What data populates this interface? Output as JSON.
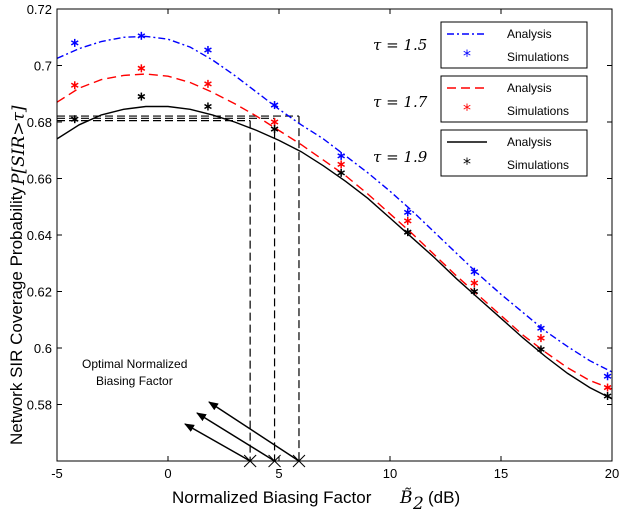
{
  "chart_data": {
    "type": "line",
    "xlabel": "Normalized Biasing Factor",
    "xlabel_symbol": "B̃",
    "xlabel_subscript": "2",
    "xlabel_unit": "(dB)",
    "ylabel": "Network SIR Coverage Probability",
    "ylabel_symbol": "P[SIR>τ]",
    "xlim": [
      -5,
      20
    ],
    "ylim": [
      0.56,
      0.72
    ],
    "xticks": [
      -5,
      0,
      5,
      10,
      15,
      20
    ],
    "yticks": [
      0.58,
      0.6,
      0.62,
      0.64,
      0.66,
      0.68,
      0.7,
      0.72
    ],
    "ytick_labels": [
      "0.58",
      "0.6",
      "0.62",
      "0.64",
      "0.66",
      "0.68",
      "0.7",
      "0.72"
    ],
    "annotation": {
      "line1": "Optimal Normalized",
      "line2": "Biasing Factor",
      "optimal_x": [
        3.7,
        4.8,
        5.9
      ]
    },
    "series": [
      {
        "tau_label": "τ = 1.5",
        "color": "#0000ff",
        "analysis_label": "Analysis",
        "sim_label": "Simulations",
        "analysis": {
          "x": [
            -5,
            -4,
            -3,
            -2,
            -1,
            0,
            1,
            2,
            3,
            4,
            5,
            6,
            7,
            8,
            9,
            10,
            11,
            12,
            13,
            14,
            15,
            16,
            17,
            18,
            19,
            20
          ],
          "y": [
            0.7025,
            0.706,
            0.7085,
            0.71,
            0.7103,
            0.7093,
            0.7065,
            0.702,
            0.6965,
            0.6905,
            0.6845,
            0.679,
            0.674,
            0.668,
            0.662,
            0.6555,
            0.6485,
            0.641,
            0.6335,
            0.626,
            0.619,
            0.6125,
            0.606,
            0.6005,
            0.5955,
            0.5915
          ]
        },
        "simulations": {
          "x": [
            -4.2,
            -1.2,
            1.8,
            4.8,
            7.8,
            10.8,
            13.8,
            16.8,
            19.8
          ],
          "y": [
            0.708,
            0.7105,
            0.7055,
            0.686,
            0.668,
            0.648,
            0.627,
            0.607,
            0.59
          ]
        }
      },
      {
        "tau_label": "τ = 1.7",
        "color": "#ff0000",
        "analysis_label": "Analysis",
        "sim_label": "Simulations",
        "analysis": {
          "x": [
            -5,
            -4,
            -3,
            -2,
            -1,
            0,
            1,
            2,
            3,
            4,
            5,
            6,
            7,
            8,
            9,
            10,
            11,
            12,
            13,
            14,
            15,
            16,
            17,
            18,
            19,
            20
          ],
          "y": [
            0.687,
            0.692,
            0.695,
            0.6965,
            0.697,
            0.6962,
            0.694,
            0.6905,
            0.6865,
            0.682,
            0.677,
            0.672,
            0.6665,
            0.661,
            0.6545,
            0.6475,
            0.6405,
            0.633,
            0.6255,
            0.6185,
            0.6115,
            0.6045,
            0.5985,
            0.593,
            0.5885,
            0.5855
          ]
        },
        "simulations": {
          "x": [
            -4.2,
            -1.2,
            1.8,
            4.8,
            7.8,
            10.8,
            13.8,
            16.8,
            19.8
          ],
          "y": [
            0.693,
            0.699,
            0.6935,
            0.68,
            0.665,
            0.645,
            0.623,
            0.6035,
            0.586
          ]
        }
      },
      {
        "tau_label": "τ = 1.9",
        "color": "#000000",
        "analysis_label": "Analysis",
        "sim_label": "Simulations",
        "analysis": {
          "x": [
            -5,
            -4,
            -3,
            -2,
            -1,
            0,
            1,
            2,
            3,
            4,
            5,
            6,
            7,
            8,
            9,
            10,
            11,
            12,
            13,
            14,
            15,
            16,
            17,
            18,
            19,
            20
          ],
          "y": [
            0.674,
            0.679,
            0.6825,
            0.6845,
            0.6855,
            0.6855,
            0.6845,
            0.6825,
            0.68,
            0.677,
            0.6735,
            0.6695,
            0.6645,
            0.659,
            0.653,
            0.646,
            0.639,
            0.632,
            0.6245,
            0.6175,
            0.6105,
            0.6035,
            0.597,
            0.591,
            0.586,
            0.582
          ]
        },
        "simulations": {
          "x": [
            -4.2,
            -1.2,
            1.8,
            4.8,
            7.8,
            10.8,
            13.8,
            16.8,
            19.8
          ],
          "y": [
            0.681,
            0.689,
            0.6855,
            0.6775,
            0.662,
            0.641,
            0.62,
            0.5995,
            0.583
          ]
        }
      }
    ]
  }
}
